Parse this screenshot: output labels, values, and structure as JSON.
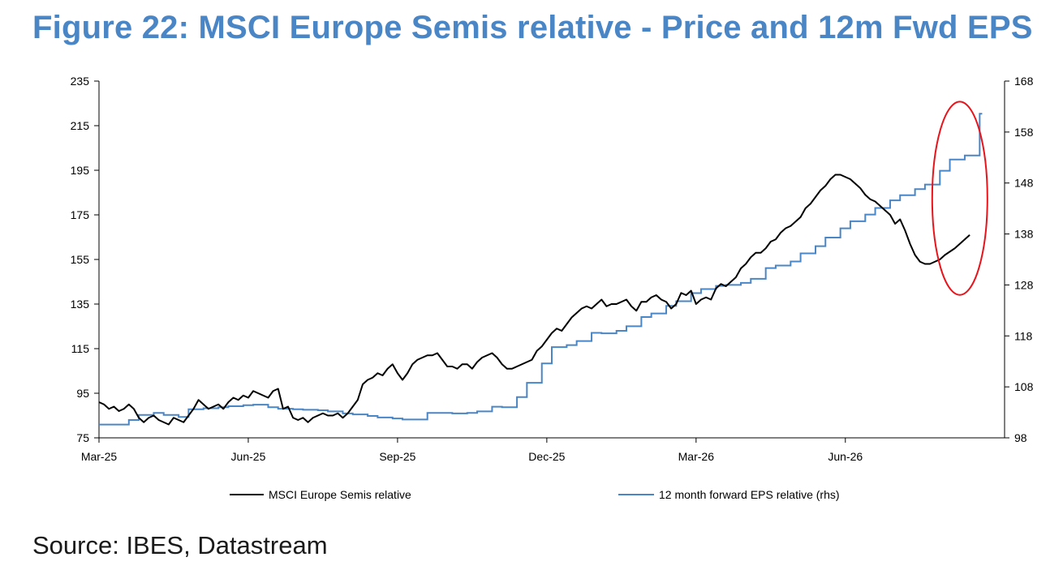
{
  "title": "Figure 22: MSCI Europe Semis relative - Price and 12m Fwd EPS",
  "source": "Source: IBES, Datastream",
  "colors": {
    "price": "#000000",
    "eps": "#4a86c5",
    "title": "#4a86c5",
    "highlight": "#e8141c"
  },
  "chart_data": {
    "type": "line",
    "title": "Figure 22: MSCI Europe Semis relative - Price and 12m Fwd EPS",
    "x_ticks": [
      "Mar-25",
      "Jun-25",
      "Sep-25",
      "Dec-25",
      "Mar-26",
      "Jun-26"
    ],
    "x_range": [
      "2025-03",
      "2026-08"
    ],
    "y_left": {
      "range": [
        75,
        235
      ],
      "ticks": [
        75,
        95,
        115,
        135,
        155,
        175,
        195,
        215,
        235
      ]
    },
    "y_right": {
      "range": [
        98,
        168
      ],
      "ticks": [
        98,
        108,
        118,
        128,
        138,
        148,
        158,
        168
      ]
    },
    "legend_position": "bottom",
    "grid": false,
    "annotation": "red ellipse highlighting the latest period",
    "series": [
      {
        "name": "MSCI Europe Semis relative",
        "axis": "left",
        "x": [
          0.0,
          0.1,
          0.2,
          0.3,
          0.4,
          0.5,
          0.6,
          0.7,
          0.8,
          0.9,
          1.0,
          1.1,
          1.2,
          1.3,
          1.4,
          1.5,
          1.6,
          1.7,
          1.8,
          1.9,
          2.0,
          2.1,
          2.2,
          2.3,
          2.4,
          2.5,
          2.6,
          2.7,
          2.8,
          2.9,
          3.0,
          3.1,
          3.2,
          3.3,
          3.4,
          3.5,
          3.6,
          3.7,
          3.8,
          3.9,
          4.0,
          4.1,
          4.2,
          4.3,
          4.4,
          4.5,
          4.6,
          4.7,
          4.8,
          4.9,
          5.0,
          5.1,
          5.2,
          5.3,
          5.4,
          5.5,
          5.6,
          5.7,
          5.8,
          5.9,
          6.0,
          6.1,
          6.2,
          6.3,
          6.4,
          6.5,
          6.6,
          6.7,
          6.8,
          6.9,
          7.0,
          7.1,
          7.2,
          7.3,
          7.4,
          7.5,
          7.6,
          7.7,
          7.8,
          7.9,
          8.0,
          8.1,
          8.2,
          8.3,
          8.4,
          8.5,
          8.6,
          8.7,
          8.8,
          8.9,
          9.0,
          9.1,
          9.2,
          9.3,
          9.4,
          9.5,
          9.6,
          9.7,
          9.8,
          9.9,
          10.0,
          10.1,
          10.2,
          10.3,
          10.4,
          10.5,
          10.6,
          10.7,
          10.8,
          10.9,
          11.0,
          11.1,
          11.2,
          11.3,
          11.4,
          11.5,
          11.6,
          11.7,
          11.8,
          11.9,
          12.0,
          12.1,
          12.2,
          12.3,
          12.4,
          12.5,
          12.6,
          12.7,
          12.8,
          12.9,
          13.0,
          13.1,
          13.2,
          13.3,
          13.4,
          13.5,
          13.6,
          13.7,
          13.8,
          13.9,
          14.0,
          14.1,
          14.2,
          14.3,
          14.4,
          14.5,
          14.6,
          14.7,
          14.8,
          14.9,
          15.0,
          15.1,
          15.2,
          15.3,
          15.4,
          15.5,
          15.6,
          15.7,
          15.8,
          15.9,
          16.0,
          16.1,
          16.2,
          16.3,
          16.4,
          16.5,
          16.6,
          16.7,
          16.8,
          16.9,
          17.0,
          17.2,
          17.5
        ],
        "values": [
          91,
          90,
          88,
          89,
          87,
          88,
          90,
          88,
          84,
          82,
          84,
          85,
          83,
          82,
          81,
          84,
          83,
          82,
          85,
          88,
          92,
          90,
          88,
          89,
          90,
          88,
          91,
          93,
          92,
          94,
          93,
          96,
          95,
          94,
          93,
          96,
          97,
          88,
          89,
          84,
          83,
          84,
          82,
          84,
          85,
          86,
          85,
          85,
          86,
          84,
          86,
          89,
          92,
          99,
          101,
          102,
          104,
          103,
          106,
          108,
          104,
          101,
          104,
          108,
          110,
          111,
          112,
          112,
          113,
          110,
          107,
          107,
          106,
          108,
          108,
          106,
          109,
          111,
          112,
          113,
          111,
          108,
          106,
          106,
          107,
          108,
          109,
          110,
          114,
          116,
          119,
          122,
          124,
          123,
          126,
          129,
          131,
          133,
          134,
          133,
          135,
          137,
          134,
          135,
          135,
          136,
          137,
          134,
          132,
          136,
          136,
          138,
          139,
          137,
          136,
          133,
          135,
          140,
          139,
          141,
          135,
          137,
          138,
          137,
          142,
          144,
          143,
          145,
          147,
          151,
          153,
          156,
          158,
          158,
          160,
          163,
          164,
          167,
          169,
          170,
          172,
          174,
          178,
          180,
          183,
          186,
          188,
          191,
          193,
          193,
          192,
          191,
          189,
          187,
          184,
          182,
          181,
          179,
          177,
          175,
          171,
          173,
          168,
          162,
          157,
          154,
          153,
          153,
          154,
          155,
          157,
          160,
          166
        ]
      },
      {
        "name": "12 month forward EPS relative (rhs)",
        "axis": "right",
        "x": [
          0.0,
          0.3,
          0.6,
          0.8,
          1.1,
          1.3,
          1.6,
          1.8,
          2.1,
          2.4,
          2.6,
          2.9,
          3.1,
          3.4,
          3.6,
          3.9,
          4.1,
          4.4,
          4.6,
          4.9,
          5.1,
          5.4,
          5.6,
          5.9,
          6.1,
          6.4,
          6.6,
          6.9,
          7.1,
          7.4,
          7.6,
          7.9,
          8.1,
          8.4,
          8.6,
          8.9,
          9.1,
          9.4,
          9.6,
          9.9,
          10.1,
          10.4,
          10.6,
          10.9,
          11.1,
          11.4,
          11.6,
          11.9,
          12.1,
          12.4,
          12.6,
          12.9,
          13.1,
          13.4,
          13.6,
          13.9,
          14.1,
          14.4,
          14.6,
          14.9,
          15.1,
          15.4,
          15.6,
          15.9,
          16.1,
          16.4,
          16.6,
          16.9,
          17.1,
          17.4,
          17.7
        ],
        "values": [
          100.6,
          100.6,
          101.5,
          102.5,
          102.9,
          102.5,
          102.1,
          103.6,
          103.8,
          104.0,
          104.2,
          104.4,
          104.5,
          104.0,
          103.7,
          103.6,
          103.5,
          103.4,
          103.2,
          102.8,
          102.6,
          102.3,
          102.0,
          101.8,
          101.6,
          101.6,
          102.9,
          102.9,
          102.8,
          102.9,
          103.2,
          104.1,
          104.0,
          106.0,
          108.8,
          112.6,
          115.8,
          116.2,
          117.0,
          118.6,
          118.5,
          119.0,
          119.9,
          121.7,
          122.4,
          123.9,
          124.8,
          126.4,
          127.2,
          127.8,
          128.0,
          128.4,
          129.2,
          131.3,
          131.8,
          132.6,
          134.2,
          135.6,
          137.3,
          139.1,
          140.5,
          141.8,
          143.1,
          144.6,
          145.6,
          146.8,
          147.7,
          150.4,
          152.6,
          153.4,
          161.6
        ]
      }
    ]
  }
}
